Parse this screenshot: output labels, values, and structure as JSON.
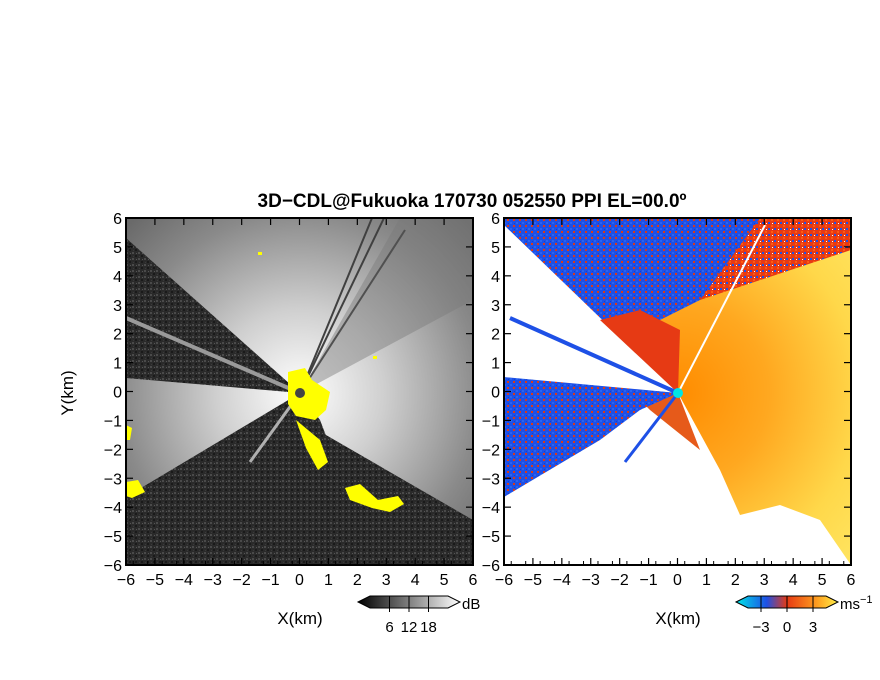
{
  "title": "3D−CDL@Fukuoka 170730 052550 PPI EL=00.0º",
  "chart_data": [
    {
      "type": "heatmap",
      "panel": "reflectivity",
      "xlabel": "X(km)",
      "ylabel": "Y(km)",
      "xlim": [
        -6,
        6
      ],
      "ylim": [
        -6,
        6
      ],
      "x_ticks": [
        "−6",
        "−5",
        "−4",
        "−3",
        "−2",
        "−1",
        "0",
        "1",
        "2",
        "3",
        "4",
        "5",
        "6"
      ],
      "y_ticks": [
        "6",
        "5",
        "4",
        "3",
        "2",
        "1",
        "0",
        "−1",
        "−2",
        "−3",
        "−4",
        "−5",
        "−6"
      ],
      "colormap": "grayscale",
      "colorbar": {
        "unit": "dB",
        "ticks": [
          "6",
          "12",
          "18"
        ],
        "range": [
          0,
          24
        ]
      },
      "highlight_color": "#ffff00"
    },
    {
      "type": "heatmap",
      "panel": "doppler_velocity",
      "xlabel": "X(km)",
      "xlim": [
        -6,
        6
      ],
      "ylim": [
        -6,
        6
      ],
      "x_ticks": [
        "−6",
        "−5",
        "−4",
        "−3",
        "−2",
        "−1",
        "0",
        "1",
        "2",
        "3",
        "4",
        "5",
        "6"
      ],
      "y_ticks": [
        "6",
        "5",
        "4",
        "3",
        "2",
        "1",
        "0",
        "−1",
        "−2",
        "−3",
        "−4",
        "−5",
        "−6"
      ],
      "colormap": "cyan-blue-red-orange-yellow",
      "colorbar": {
        "unit": "ms",
        "unit_exp": "−1",
        "ticks": [
          "−3",
          "0",
          "3"
        ],
        "range": [
          -4.5,
          4.5
        ]
      },
      "colors": {
        "negative": "#1e50e6",
        "near_zero": "#e63a14",
        "positive": "#ffb000",
        "high": "#fff04a",
        "center_marker": "#00e5e5"
      }
    }
  ]
}
